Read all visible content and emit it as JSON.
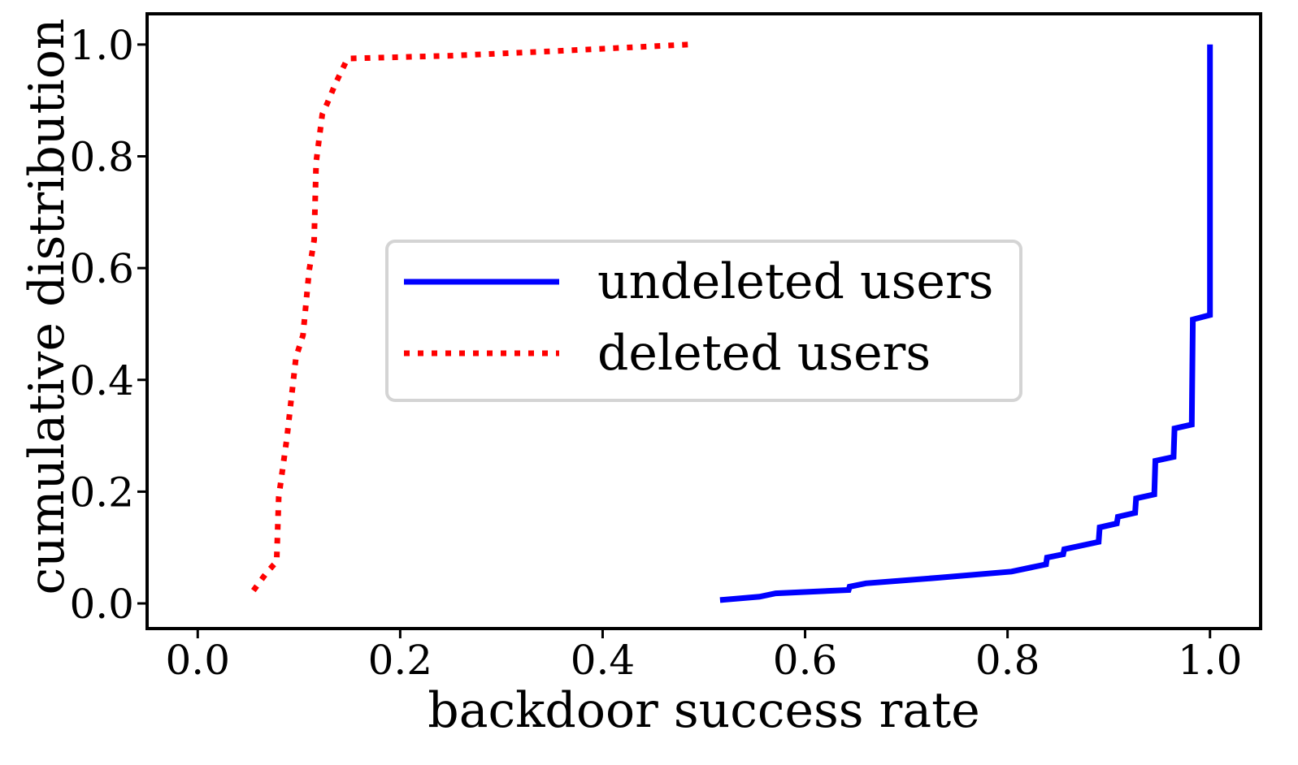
{
  "chart_data": {
    "type": "line",
    "title": "",
    "xlabel": "backdoor success rate",
    "ylabel": "cumulative distribution",
    "xlim": [
      -0.05,
      1.05
    ],
    "ylim": [
      -0.045,
      1.055
    ],
    "xticks": [
      0.0,
      0.2,
      0.4,
      0.6,
      0.8,
      1.0
    ],
    "xtick_labels": [
      "0.0",
      "0.2",
      "0.4",
      "0.6",
      "0.8",
      "1.0"
    ],
    "yticks": [
      0.0,
      0.2,
      0.4,
      0.6,
      0.8,
      1.0
    ],
    "ytick_labels": [
      "0.0",
      "0.2",
      "0.4",
      "0.6",
      "0.8",
      "1.0"
    ],
    "grid": false,
    "legend_position": "center",
    "series": [
      {
        "name": "undeleted users",
        "color": "#0000ff",
        "style": "solid",
        "points": [
          [
            0.516,
            0.006
          ],
          [
            0.555,
            0.012
          ],
          [
            0.571,
            0.018
          ],
          [
            0.643,
            0.024
          ],
          [
            0.644,
            0.03
          ],
          [
            0.66,
            0.036
          ],
          [
            0.732,
            0.046
          ],
          [
            0.804,
            0.057
          ],
          [
            0.838,
            0.07
          ],
          [
            0.839,
            0.082
          ],
          [
            0.855,
            0.088
          ],
          [
            0.856,
            0.097
          ],
          [
            0.89,
            0.11
          ],
          [
            0.891,
            0.136
          ],
          [
            0.908,
            0.143
          ],
          [
            0.909,
            0.155
          ],
          [
            0.926,
            0.162
          ],
          [
            0.927,
            0.188
          ],
          [
            0.945,
            0.195
          ],
          [
            0.946,
            0.255
          ],
          [
            0.964,
            0.262
          ],
          [
            0.965,
            0.313
          ],
          [
            0.982,
            0.32
          ],
          [
            0.983,
            0.508
          ],
          [
            1.0,
            0.516
          ],
          [
            1.0,
            1.0
          ]
        ]
      },
      {
        "name": "deleted users",
        "color": "#ff0000",
        "style": "dotted",
        "points": [
          [
            0.055,
            0.023
          ],
          [
            0.068,
            0.055
          ],
          [
            0.078,
            0.075
          ],
          [
            0.08,
            0.19
          ],
          [
            0.088,
            0.295
          ],
          [
            0.097,
            0.44
          ],
          [
            0.104,
            0.48
          ],
          [
            0.11,
            0.595
          ],
          [
            0.115,
            0.65
          ],
          [
            0.117,
            0.79
          ],
          [
            0.123,
            0.875
          ],
          [
            0.128,
            0.895
          ],
          [
            0.136,
            0.93
          ],
          [
            0.148,
            0.975
          ],
          [
            0.25,
            0.98
          ],
          [
            0.35,
            0.988
          ],
          [
            0.485,
            1.0
          ]
        ]
      }
    ]
  }
}
